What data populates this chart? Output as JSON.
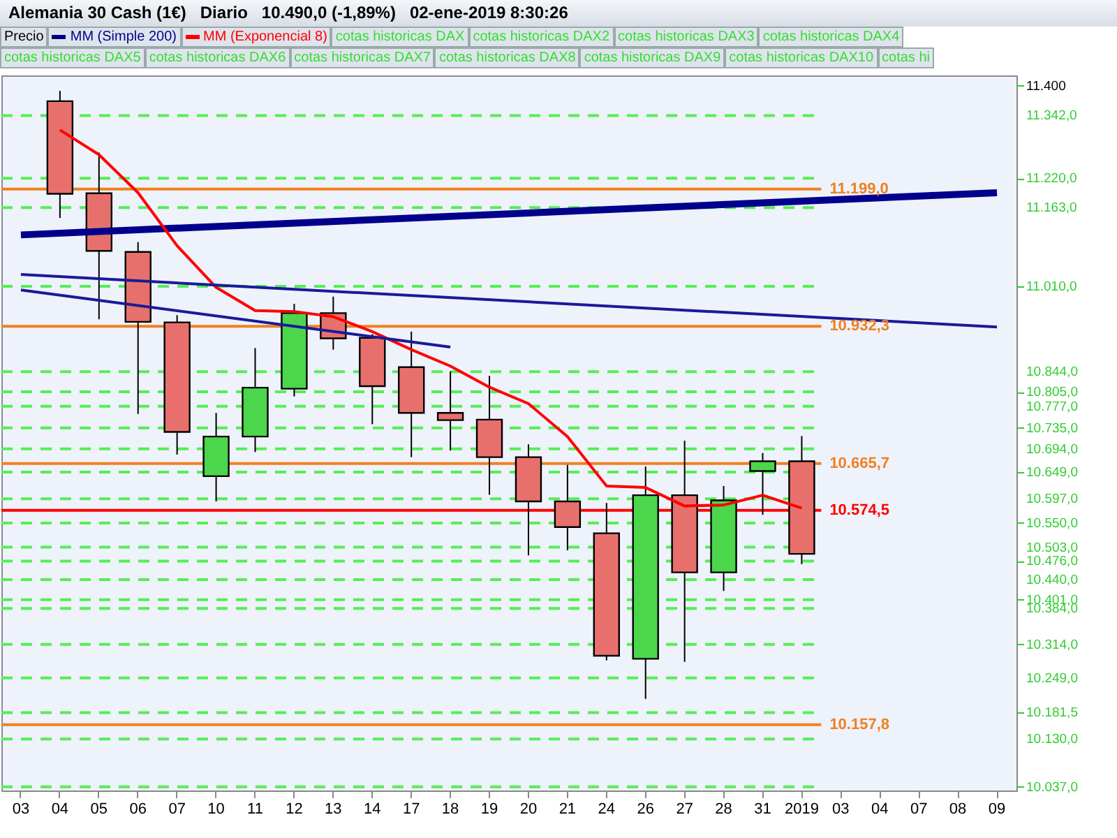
{
  "chart_data": {
    "type": "candlestick",
    "title": "Alemania 30 Cash (1€)   Diario   10.490,0 (-1,89%)   02-ene-2019 8:30:26",
    "categories": [
      "03",
      "04",
      "05",
      "06",
      "07",
      "10",
      "11",
      "12",
      "13",
      "14",
      "17",
      "18",
      "19",
      "20",
      "21",
      "24",
      "26",
      "27",
      "28",
      "31",
      "2019",
      "03",
      "04",
      "07",
      "08",
      "09"
    ],
    "ohlc": [
      null,
      [
        11370,
        11390,
        11143,
        11190
      ],
      [
        11191,
        11270,
        10946,
        11079
      ],
      [
        11077,
        11096,
        10762,
        10941
      ],
      [
        10940,
        10954,
        10683,
        10727
      ],
      [
        10641,
        10764,
        10592,
        10718
      ],
      [
        10718,
        10890,
        10688,
        10813
      ],
      [
        10811,
        10976,
        10796,
        10958
      ],
      [
        10958,
        10990,
        10887,
        10909
      ],
      [
        10910,
        10917,
        10742,
        10816
      ],
      [
        10853,
        10922,
        10678,
        10764
      ],
      [
        10764,
        10845,
        10691,
        10750
      ],
      [
        10751,
        10836,
        10605,
        10678
      ],
      [
        10678,
        10703,
        10487,
        10592
      ],
      [
        10592,
        10663,
        10497,
        10542
      ],
      [
        10530,
        10589,
        10283,
        10292
      ],
      [
        10286,
        10660,
        10208,
        10604
      ],
      [
        10604,
        10710,
        10280,
        10454
      ],
      [
        10454,
        10622,
        10418,
        10594
      ],
      [
        10651,
        10686,
        10566,
        10670
      ],
      [
        10670,
        10719,
        10470,
        10490
      ],
      null,
      null,
      null,
      null,
      null
    ],
    "colors": [
      null,
      "#e8706c",
      "#e8706c",
      "#e8706c",
      "#e8706c",
      "#4cd64c",
      "#4cd64c",
      "#4cd64c",
      "#e8706c",
      "#e8706c",
      "#e8706c",
      "#e8706c",
      "#e8706c",
      "#e8706c",
      "#e8706c",
      "#e8706c",
      "#4cd64c",
      "#e8706c",
      "#4cd64c",
      "#4cd64c",
      "#e8706c",
      null,
      null,
      null,
      null,
      null
    ],
    "series": [
      {
        "name": "MM (Simple 200)",
        "type": "line",
        "color": "#00008c",
        "values": [
          11110,
          null,
          null,
          null,
          null,
          null,
          null,
          null,
          null,
          null,
          null,
          null,
          null,
          null,
          null,
          null,
          null,
          null,
          null,
          null,
          null,
          null,
          null,
          null,
          null,
          11192
        ]
      },
      {
        "name": "MM (Exponencial 8)",
        "type": "line",
        "color": "#ff0000",
        "values": [
          null,
          11314,
          11266,
          11192,
          11089,
          11008,
          10963,
          10961,
          10951,
          10922,
          10887,
          10855,
          10814,
          10782,
          10718,
          10622,
          10619,
          10583,
          10585,
          10604,
          10579,
          null,
          null,
          null,
          null,
          null
        ]
      },
      {
        "type": "line",
        "color": "#1a1a9a",
        "values": [
          11033,
          null,
          null,
          null,
          null,
          null,
          null,
          null,
          null,
          null,
          null,
          null,
          null,
          null,
          null,
          null,
          null,
          null,
          null,
          null,
          null,
          null,
          null,
          null,
          null,
          10931
        ]
      },
      {
        "type": "line",
        "color": "#1a1a9a",
        "values": [
          11003,
          null,
          null,
          null,
          null,
          null,
          null,
          null,
          null,
          null,
          null,
          10892,
          null,
          null,
          null,
          null,
          null,
          null,
          null,
          null,
          null,
          null,
          null,
          null,
          null,
          null
        ]
      }
    ],
    "annotations": [
      "Precio",
      "cotas historicas DAX",
      "cotas historicas DAX2",
      "cotas historicas DAX3",
      "cotas historicas DAX4",
      "cotas historicas DAX5",
      "cotas historicas DAX6",
      "cotas historicas DAX7",
      "cotas historicas DAX8",
      "cotas historicas DAX9",
      "cotas historicas DAX10",
      "cotas hi"
    ],
    "ylim": [
      10030,
      11420
    ],
    "yticks": [
      {
        "value": 11400,
        "label": "11.400"
      },
      {
        "value": 11342,
        "label": "11.342,0"
      },
      {
        "value": 11220,
        "label": "11.220,0"
      },
      {
        "value": 11163,
        "label": "11.163,0"
      },
      {
        "value": 11010,
        "label": "11.010,0"
      },
      {
        "value": 10844,
        "label": "10.844,0"
      },
      {
        "value": 10805,
        "label": "10.805,0"
      },
      {
        "value": 10777,
        "label": "10.777,0"
      },
      {
        "value": 10735,
        "label": "10.735,0"
      },
      {
        "value": 10694,
        "label": "10.694,0"
      },
      {
        "value": 10649,
        "label": "10.649,0"
      },
      {
        "value": 10597,
        "label": "10.597,0"
      },
      {
        "value": 10550,
        "label": "10.550,0"
      },
      {
        "value": 10503,
        "label": "10.503,0"
      },
      {
        "value": 10476,
        "label": "10.476,0"
      },
      {
        "value": 10440,
        "label": "10.440,0"
      },
      {
        "value": 10401,
        "label": "10.401,0"
      },
      {
        "value": 10384,
        "label": "10.384,0"
      },
      {
        "value": 10314,
        "label": "10.314,0"
      },
      {
        "value": 10249,
        "label": "10.249,0"
      },
      {
        "value": 10181.5,
        "label": "10.181,5"
      },
      {
        "value": 10130,
        "label": "10.130,0"
      },
      {
        "value": 10037,
        "label": "10.037,0"
      }
    ],
    "legend": "top left",
    "grid": false,
    "ref_lines": [
      {
        "axis": "y",
        "value": 11342,
        "color": "#55ee55",
        "line_style": "dashed"
      },
      {
        "axis": "y",
        "value": 11220,
        "color": "#55ee55",
        "line_style": "dashed"
      },
      {
        "axis": "y",
        "value": 11199,
        "label": "11.199,0",
        "color": "#f08020",
        "line_style": "solid"
      },
      {
        "axis": "y",
        "value": 11163,
        "color": "#55ee55",
        "line_style": "dashed"
      },
      {
        "axis": "y",
        "value": 11010,
        "color": "#55ee55",
        "line_style": "dashed"
      },
      {
        "axis": "y",
        "value": 10932.3,
        "label": "10.932,3",
        "color": "#f08020",
        "line_style": "solid"
      },
      {
        "axis": "y",
        "value": 10844,
        "color": "#55ee55",
        "line_style": "dashed"
      },
      {
        "axis": "y",
        "value": 10805,
        "color": "#55ee55",
        "line_style": "dashed"
      },
      {
        "axis": "y",
        "value": 10777,
        "color": "#55ee55",
        "line_style": "dashed"
      },
      {
        "axis": "y",
        "value": 10735,
        "color": "#55ee55",
        "line_style": "dashed"
      },
      {
        "axis": "y",
        "value": 10694,
        "color": "#55ee55",
        "line_style": "dashed"
      },
      {
        "axis": "y",
        "value": 10665.7,
        "label": "10.665,7",
        "color": "#f08020",
        "line_style": "solid"
      },
      {
        "axis": "y",
        "value": 10649,
        "color": "#55ee55",
        "line_style": "dashed"
      },
      {
        "axis": "y",
        "value": 10597,
        "color": "#55ee55",
        "line_style": "dashed"
      },
      {
        "axis": "y",
        "value": 10574.5,
        "label": "10.574,5",
        "color": "#ff0000",
        "line_style": "solid"
      },
      {
        "axis": "y",
        "value": 10550,
        "color": "#55ee55",
        "line_style": "dashed"
      },
      {
        "axis": "y",
        "value": 10503,
        "color": "#55ee55",
        "line_style": "dashed"
      },
      {
        "axis": "y",
        "value": 10476,
        "color": "#55ee55",
        "line_style": "dashed"
      },
      {
        "axis": "y",
        "value": 10440,
        "color": "#55ee55",
        "line_style": "dashed"
      },
      {
        "axis": "y",
        "value": 10401,
        "color": "#55ee55",
        "line_style": "dashed"
      },
      {
        "axis": "y",
        "value": 10384,
        "color": "#55ee55",
        "line_style": "dashed"
      },
      {
        "axis": "y",
        "value": 10314,
        "color": "#55ee55",
        "line_style": "dashed"
      },
      {
        "axis": "y",
        "value": 10249,
        "color": "#55ee55",
        "line_style": "dashed"
      },
      {
        "axis": "y",
        "value": 10181.5,
        "color": "#55ee55",
        "line_style": "dashed"
      },
      {
        "axis": "y",
        "value": 10157.8,
        "label": "10.157,8",
        "color": "#f08020",
        "line_style": "solid"
      },
      {
        "axis": "y",
        "value": 10130,
        "color": "#55ee55",
        "line_style": "dashed"
      },
      {
        "axis": "y",
        "value": 10037,
        "color": "#55ee55",
        "line_style": "dashed"
      }
    ]
  }
}
